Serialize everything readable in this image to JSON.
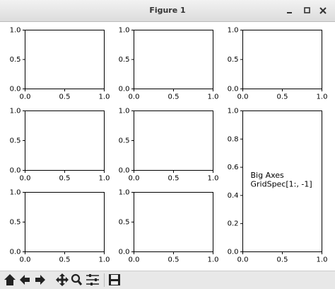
{
  "window": {
    "title": "Figure 1"
  },
  "chart_data": [
    {
      "type": "line",
      "xlim": [
        0,
        1
      ],
      "ylim": [
        0,
        1
      ],
      "xticks": [
        {
          "value": 0,
          "label": "0.0"
        },
        {
          "value": 0.5,
          "label": "0.5"
        },
        {
          "value": 1,
          "label": "1.0"
        }
      ],
      "yticks": [
        {
          "value": 0,
          "label": "0.0"
        },
        {
          "value": 0.5,
          "label": "0.5"
        },
        {
          "value": 1,
          "label": "1.0"
        }
      ]
    },
    {
      "type": "line",
      "xlim": [
        0,
        1
      ],
      "ylim": [
        0,
        1
      ],
      "xticks": [
        {
          "value": 0,
          "label": "0.0"
        },
        {
          "value": 0.5,
          "label": "0.5"
        },
        {
          "value": 1,
          "label": "1.0"
        }
      ],
      "yticks": [
        {
          "value": 0,
          "label": "0.0"
        },
        {
          "value": 0.5,
          "label": "0.5"
        },
        {
          "value": 1,
          "label": "1.0"
        }
      ]
    },
    {
      "type": "line",
      "xlim": [
        0,
        1
      ],
      "ylim": [
        0,
        1
      ],
      "xticks": [
        {
          "value": 0,
          "label": "0.0"
        },
        {
          "value": 0.5,
          "label": "0.5"
        },
        {
          "value": 1,
          "label": "1.0"
        }
      ],
      "yticks": [
        {
          "value": 0,
          "label": "0.0"
        },
        {
          "value": 0.5,
          "label": "0.5"
        },
        {
          "value": 1,
          "label": "1.0"
        }
      ]
    },
    {
      "type": "line",
      "xlim": [
        0,
        1
      ],
      "ylim": [
        0,
        1
      ],
      "xticks": [
        {
          "value": 0,
          "label": "0.0"
        },
        {
          "value": 0.5,
          "label": "0.5"
        },
        {
          "value": 1,
          "label": "1.0"
        }
      ],
      "yticks": [
        {
          "value": 0,
          "label": "0.0"
        },
        {
          "value": 0.5,
          "label": "0.5"
        },
        {
          "value": 1,
          "label": "1.0"
        }
      ]
    },
    {
      "type": "line",
      "xlim": [
        0,
        1
      ],
      "ylim": [
        0,
        1
      ],
      "xticks": [
        {
          "value": 0,
          "label": "0.0"
        },
        {
          "value": 0.5,
          "label": "0.5"
        },
        {
          "value": 1,
          "label": "1.0"
        }
      ],
      "yticks": [
        {
          "value": 0,
          "label": "0.0"
        },
        {
          "value": 0.5,
          "label": "0.5"
        },
        {
          "value": 1,
          "label": "1.0"
        }
      ]
    },
    {
      "type": "line",
      "xlim": [
        0,
        1
      ],
      "ylim": [
        0,
        1
      ],
      "xticks": [
        {
          "value": 0,
          "label": "0.0"
        },
        {
          "value": 0.5,
          "label": "0.5"
        },
        {
          "value": 1,
          "label": "1.0"
        }
      ],
      "yticks": [
        {
          "value": 0,
          "label": "0.0"
        },
        {
          "value": 0.2,
          "label": "0.2"
        },
        {
          "value": 0.4,
          "label": "0.4"
        },
        {
          "value": 0.6,
          "label": "0.6"
        },
        {
          "value": 0.8,
          "label": "0.8"
        },
        {
          "value": 1,
          "label": "1.0"
        }
      ],
      "annotation": [
        "Big Axes",
        "GridSpec[1:, -1]"
      ]
    },
    {
      "type": "line",
      "xlim": [
        0,
        1
      ],
      "ylim": [
        0,
        1
      ],
      "xticks": [
        {
          "value": 0,
          "label": "0.0"
        },
        {
          "value": 0.5,
          "label": "0.5"
        },
        {
          "value": 1,
          "label": "1.0"
        }
      ],
      "yticks": [
        {
          "value": 0,
          "label": "0.0"
        },
        {
          "value": 0.5,
          "label": "0.5"
        },
        {
          "value": 1,
          "label": "1.0"
        }
      ]
    },
    {
      "type": "line",
      "xlim": [
        0,
        1
      ],
      "ylim": [
        0,
        1
      ],
      "xticks": [
        {
          "value": 0,
          "label": "0.0"
        },
        {
          "value": 0.5,
          "label": "0.5"
        },
        {
          "value": 1,
          "label": "1.0"
        }
      ],
      "yticks": [
        {
          "value": 0,
          "label": "0.0"
        },
        {
          "value": 0.5,
          "label": "0.5"
        },
        {
          "value": 1,
          "label": "1.0"
        }
      ]
    }
  ]
}
